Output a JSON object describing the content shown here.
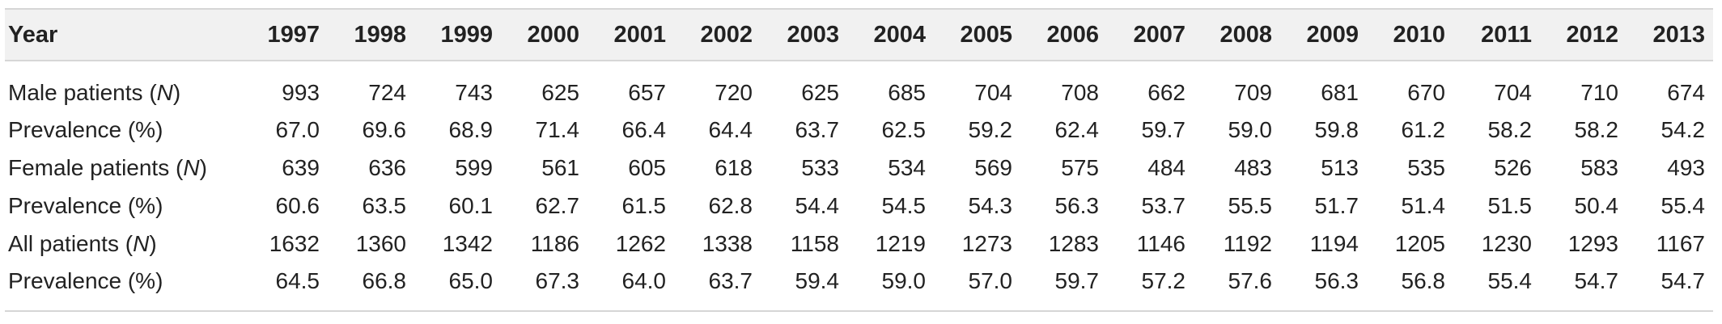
{
  "table": {
    "header_label": "Year",
    "years": [
      "1997",
      "1998",
      "1999",
      "2000",
      "2001",
      "2002",
      "2003",
      "2004",
      "2005",
      "2006",
      "2007",
      "2008",
      "2009",
      "2010",
      "2011",
      "2012",
      "2013"
    ],
    "rows": [
      {
        "label_prefix": "Male patients (",
        "label_unit": "N",
        "label_suffix": ")",
        "values": [
          "993",
          "724",
          "743",
          "625",
          "657",
          "720",
          "625",
          "685",
          "704",
          "708",
          "662",
          "709",
          "681",
          "670",
          "704",
          "710",
          "674"
        ]
      },
      {
        "label_prefix": "Prevalence (%)",
        "label_unit": "",
        "label_suffix": "",
        "values": [
          "67.0",
          "69.6",
          "68.9",
          "71.4",
          "66.4",
          "64.4",
          "63.7",
          "62.5",
          "59.2",
          "62.4",
          "59.7",
          "59.0",
          "59.8",
          "61.2",
          "58.2",
          "58.2",
          "54.2"
        ]
      },
      {
        "label_prefix": "Female patients (",
        "label_unit": "N",
        "label_suffix": ")",
        "values": [
          "639",
          "636",
          "599",
          "561",
          "605",
          "618",
          "533",
          "534",
          "569",
          "575",
          "484",
          "483",
          "513",
          "535",
          "526",
          "583",
          "493"
        ]
      },
      {
        "label_prefix": "Prevalence (%)",
        "label_unit": "",
        "label_suffix": "",
        "values": [
          "60.6",
          "63.5",
          "60.1",
          "62.7",
          "61.5",
          "62.8",
          "54.4",
          "54.5",
          "54.3",
          "56.3",
          "53.7",
          "55.5",
          "51.7",
          "51.4",
          "51.5",
          "50.4",
          "55.4"
        ]
      },
      {
        "label_prefix": "All patients (",
        "label_unit": "N",
        "label_suffix": ")",
        "values": [
          "1632",
          "1360",
          "1342",
          "1186",
          "1262",
          "1338",
          "1158",
          "1219",
          "1273",
          "1283",
          "1146",
          "1192",
          "1194",
          "1205",
          "1230",
          "1293",
          "1167"
        ]
      },
      {
        "label_prefix": "Prevalence (%)",
        "label_unit": "",
        "label_suffix": "",
        "values": [
          "64.5",
          "66.8",
          "65.0",
          "67.3",
          "64.0",
          "63.7",
          "59.4",
          "59.0",
          "57.0",
          "59.7",
          "57.2",
          "57.6",
          "56.3",
          "56.8",
          "55.4",
          "54.7",
          "54.7"
        ]
      }
    ]
  }
}
